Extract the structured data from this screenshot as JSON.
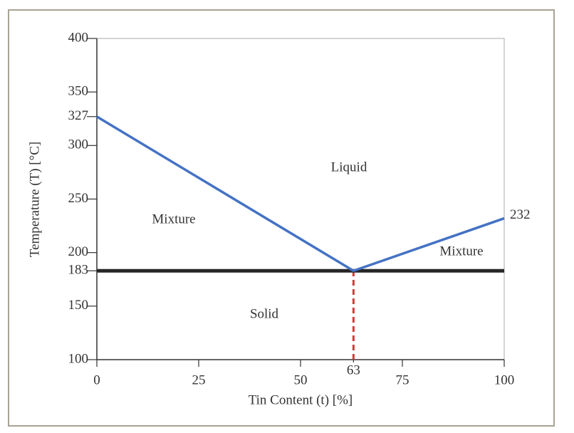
{
  "chart_data": {
    "type": "line",
    "xlabel": "Tin Content (t) [%]",
    "ylabel": "Temperature (T) [°C]",
    "x": [
      0,
      63,
      100
    ],
    "values": [
      327,
      183,
      232
    ],
    "color": "#4472c4",
    "end_label": true,
    "xlim": [
      0,
      100
    ],
    "ylim": [
      100,
      400
    ],
    "xticks": [
      0,
      25,
      50,
      63,
      75,
      100
    ],
    "yticks": [
      100,
      150,
      183,
      200,
      250,
      300,
      327,
      350,
      400
    ],
    "hlines": [
      {
        "value": 183,
        "color": "#262626"
      }
    ],
    "vlines": [
      {
        "value": 63,
        "color": "#d9383a",
        "style": "dashed"
      }
    ],
    "annotations": [
      "Liquid",
      "Mixture",
      "Mixture",
      "Solid"
    ]
  }
}
